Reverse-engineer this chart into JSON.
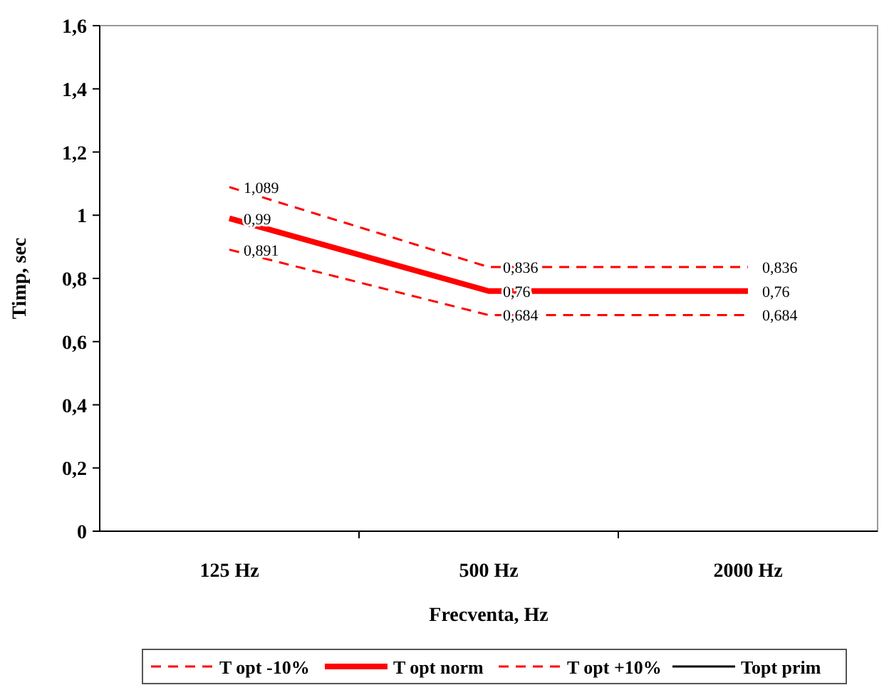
{
  "chart_data": {
    "type": "line",
    "xlabel": "Frecventa, Hz",
    "ylabel": "Timp, sec",
    "categories": [
      "125 Hz",
      "500 Hz",
      "2000 Hz"
    ],
    "series": [
      {
        "name": "T opt -10%",
        "color": "#ff0000",
        "line_style": "dashed",
        "values": [
          0.891,
          0.684,
          0.684
        ],
        "value_labels": [
          "0,891",
          "0,684",
          "0,684"
        ]
      },
      {
        "name": "T opt norm",
        "color": "#ff0000",
        "line_style": "solid",
        "values": [
          0.99,
          0.76,
          0.76
        ],
        "value_labels": [
          "0,99",
          "0,76",
          "0,76"
        ]
      },
      {
        "name": "T opt +10%",
        "color": "#ff0000",
        "line_style": "dashed",
        "values": [
          1.089,
          0.836,
          0.836
        ],
        "value_labels": [
          "1,089",
          "0,836",
          "0,836"
        ]
      },
      {
        "name": "Topt prim",
        "color": "#000000",
        "line_style": "solid",
        "values": [
          null,
          null,
          null
        ]
      }
    ],
    "ylim": [
      0,
      1.6
    ],
    "yticks": [
      0,
      {
        "value": 0.2,
        "label": "0,2"
      },
      {
        "value": 0.4,
        "label": "0,4"
      },
      {
        "value": 0.6,
        "label": "0,6"
      },
      {
        "value": 0.8,
        "label": "0,8"
      },
      1,
      {
        "value": 1.2,
        "label": "1,2"
      },
      {
        "value": 1.4,
        "label": "1,4"
      },
      {
        "value": 1.6,
        "label": "1,6"
      }
    ],
    "legend": "bottom",
    "marker": "none"
  }
}
